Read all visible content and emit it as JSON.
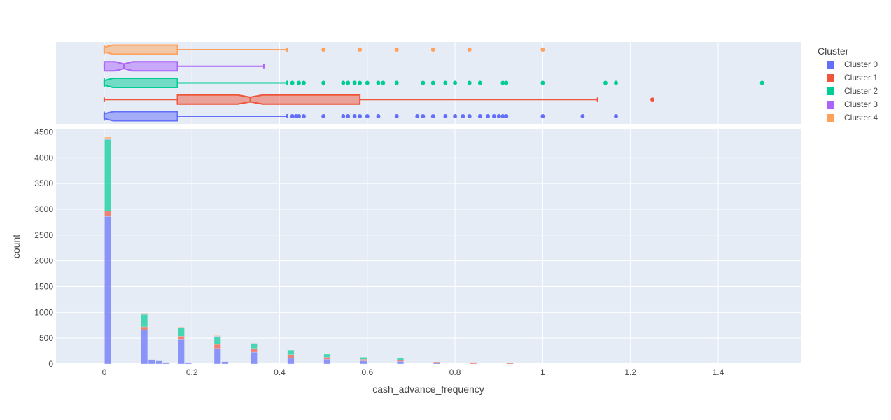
{
  "chart_data": {
    "type": "histogram-with-marginal-box",
    "xlabel": "cash_advance_frequency",
    "ylabel": "count",
    "xlim": [
      -0.11,
      1.59
    ],
    "ylim": [
      0,
      4560
    ],
    "x_ticks": [
      0,
      0.2,
      0.4,
      0.6,
      0.8,
      1,
      1.2,
      1.4
    ],
    "x_tick_labels": [
      "0",
      "0.2",
      "0.4",
      "0.6",
      "0.8",
      "1",
      "1.2",
      "1.4"
    ],
    "y_ticks": [
      0,
      500,
      1000,
      1500,
      2000,
      2500,
      3000,
      3500,
      4000,
      4500
    ],
    "y_tick_labels": [
      "0",
      "500",
      "1000",
      "1500",
      "2000",
      "2500",
      "3000",
      "3500",
      "4000",
      "4500"
    ],
    "barmode": "stack",
    "bin_width": 0.0167,
    "legend": {
      "title": "Cluster",
      "placement": "right"
    },
    "series": [
      {
        "name": "Cluster 0",
        "color": "#636efa",
        "bins": [
          [
            0,
            2860
          ],
          [
            0.083,
            660
          ],
          [
            0.1,
            85
          ],
          [
            0.117,
            60
          ],
          [
            0.133,
            30
          ],
          [
            0.167,
            470
          ],
          [
            0.183,
            30
          ],
          [
            0.25,
            300
          ],
          [
            0.267,
            45
          ],
          [
            0.333,
            230
          ],
          [
            0.417,
            110
          ],
          [
            0.5,
            90
          ],
          [
            0.583,
            60
          ],
          [
            0.667,
            50
          ],
          [
            0.75,
            20
          ]
        ],
        "box": {
          "q1": 0,
          "median": 0,
          "q3": 0.167,
          "lowerfence": 0,
          "upperfence": 0.417,
          "notched": true,
          "outliers": [
            0.429,
            0.4375,
            0.444,
            0.455,
            0.5,
            0.545,
            0.556,
            0.571,
            0.583,
            0.6,
            0.625,
            0.667,
            0.714,
            0.727,
            0.75,
            0.778,
            0.8,
            0.818,
            0.833,
            0.857,
            0.875,
            0.889,
            0.9,
            0.909,
            0.917,
            1.0,
            1.091,
            1.167
          ]
        }
      },
      {
        "name": "Cluster 1",
        "color": "#ef553b",
        "bins": [
          [
            0,
            110
          ],
          [
            0.083,
            60
          ],
          [
            0.167,
            70
          ],
          [
            0.25,
            80
          ],
          [
            0.333,
            70
          ],
          [
            0.417,
            70
          ],
          [
            0.5,
            40
          ],
          [
            0.583,
            30
          ],
          [
            0.667,
            30
          ],
          [
            0.75,
            20
          ],
          [
            0.833,
            30
          ],
          [
            0.917,
            20
          ]
        ],
        "box": {
          "q1": 0.167,
          "median": 0.333,
          "q3": 0.583,
          "lowerfence": 0,
          "upperfence": 1.125,
          "notched": true,
          "outliers": [
            1.25
          ]
        }
      },
      {
        "name": "Cluster 2",
        "color": "#00cc96",
        "bins": [
          [
            0,
            1380
          ],
          [
            0.083,
            240
          ],
          [
            0.167,
            160
          ],
          [
            0.25,
            150
          ],
          [
            0.333,
            100
          ],
          [
            0.417,
            90
          ],
          [
            0.5,
            60
          ],
          [
            0.583,
            40
          ],
          [
            0.667,
            30
          ]
        ],
        "box": {
          "q1": 0,
          "median": 0,
          "q3": 0.167,
          "lowerfence": 0,
          "upperfence": 0.417,
          "notched": true,
          "outliers": [
            0.429,
            0.444,
            0.455,
            0.5,
            0.545,
            0.556,
            0.571,
            0.583,
            0.6,
            0.625,
            0.636,
            0.667,
            0.727,
            0.75,
            0.778,
            0.8,
            0.833,
            0.857,
            0.909,
            0.917,
            1.0,
            1.143,
            1.167,
            1.5
          ]
        }
      },
      {
        "name": "Cluster 3",
        "color": "#ab63fa",
        "bins": [
          [
            0,
            20
          ],
          [
            0.083,
            15
          ],
          [
            0.167,
            10
          ],
          [
            0.25,
            10
          ],
          [
            0.333,
            5
          ]
        ],
        "box": {
          "q1": 0,
          "median": 0.045,
          "q3": 0.167,
          "lowerfence": 0,
          "upperfence": 0.364,
          "notched": true,
          "outliers": []
        }
      },
      {
        "name": "Cluster 4",
        "color": "#ffa15a",
        "bins": [
          [
            0,
            40
          ],
          [
            0.083,
            10
          ],
          [
            0.167,
            10
          ],
          [
            0.25,
            10
          ],
          [
            0.333,
            5
          ]
        ],
        "box": {
          "q1": 0,
          "median": 0,
          "q3": 0.167,
          "lowerfence": 0,
          "upperfence": 0.417,
          "notched": true,
          "outliers": [
            0.5,
            0.583,
            0.667,
            0.75,
            0.833,
            1.0
          ]
        }
      }
    ]
  }
}
